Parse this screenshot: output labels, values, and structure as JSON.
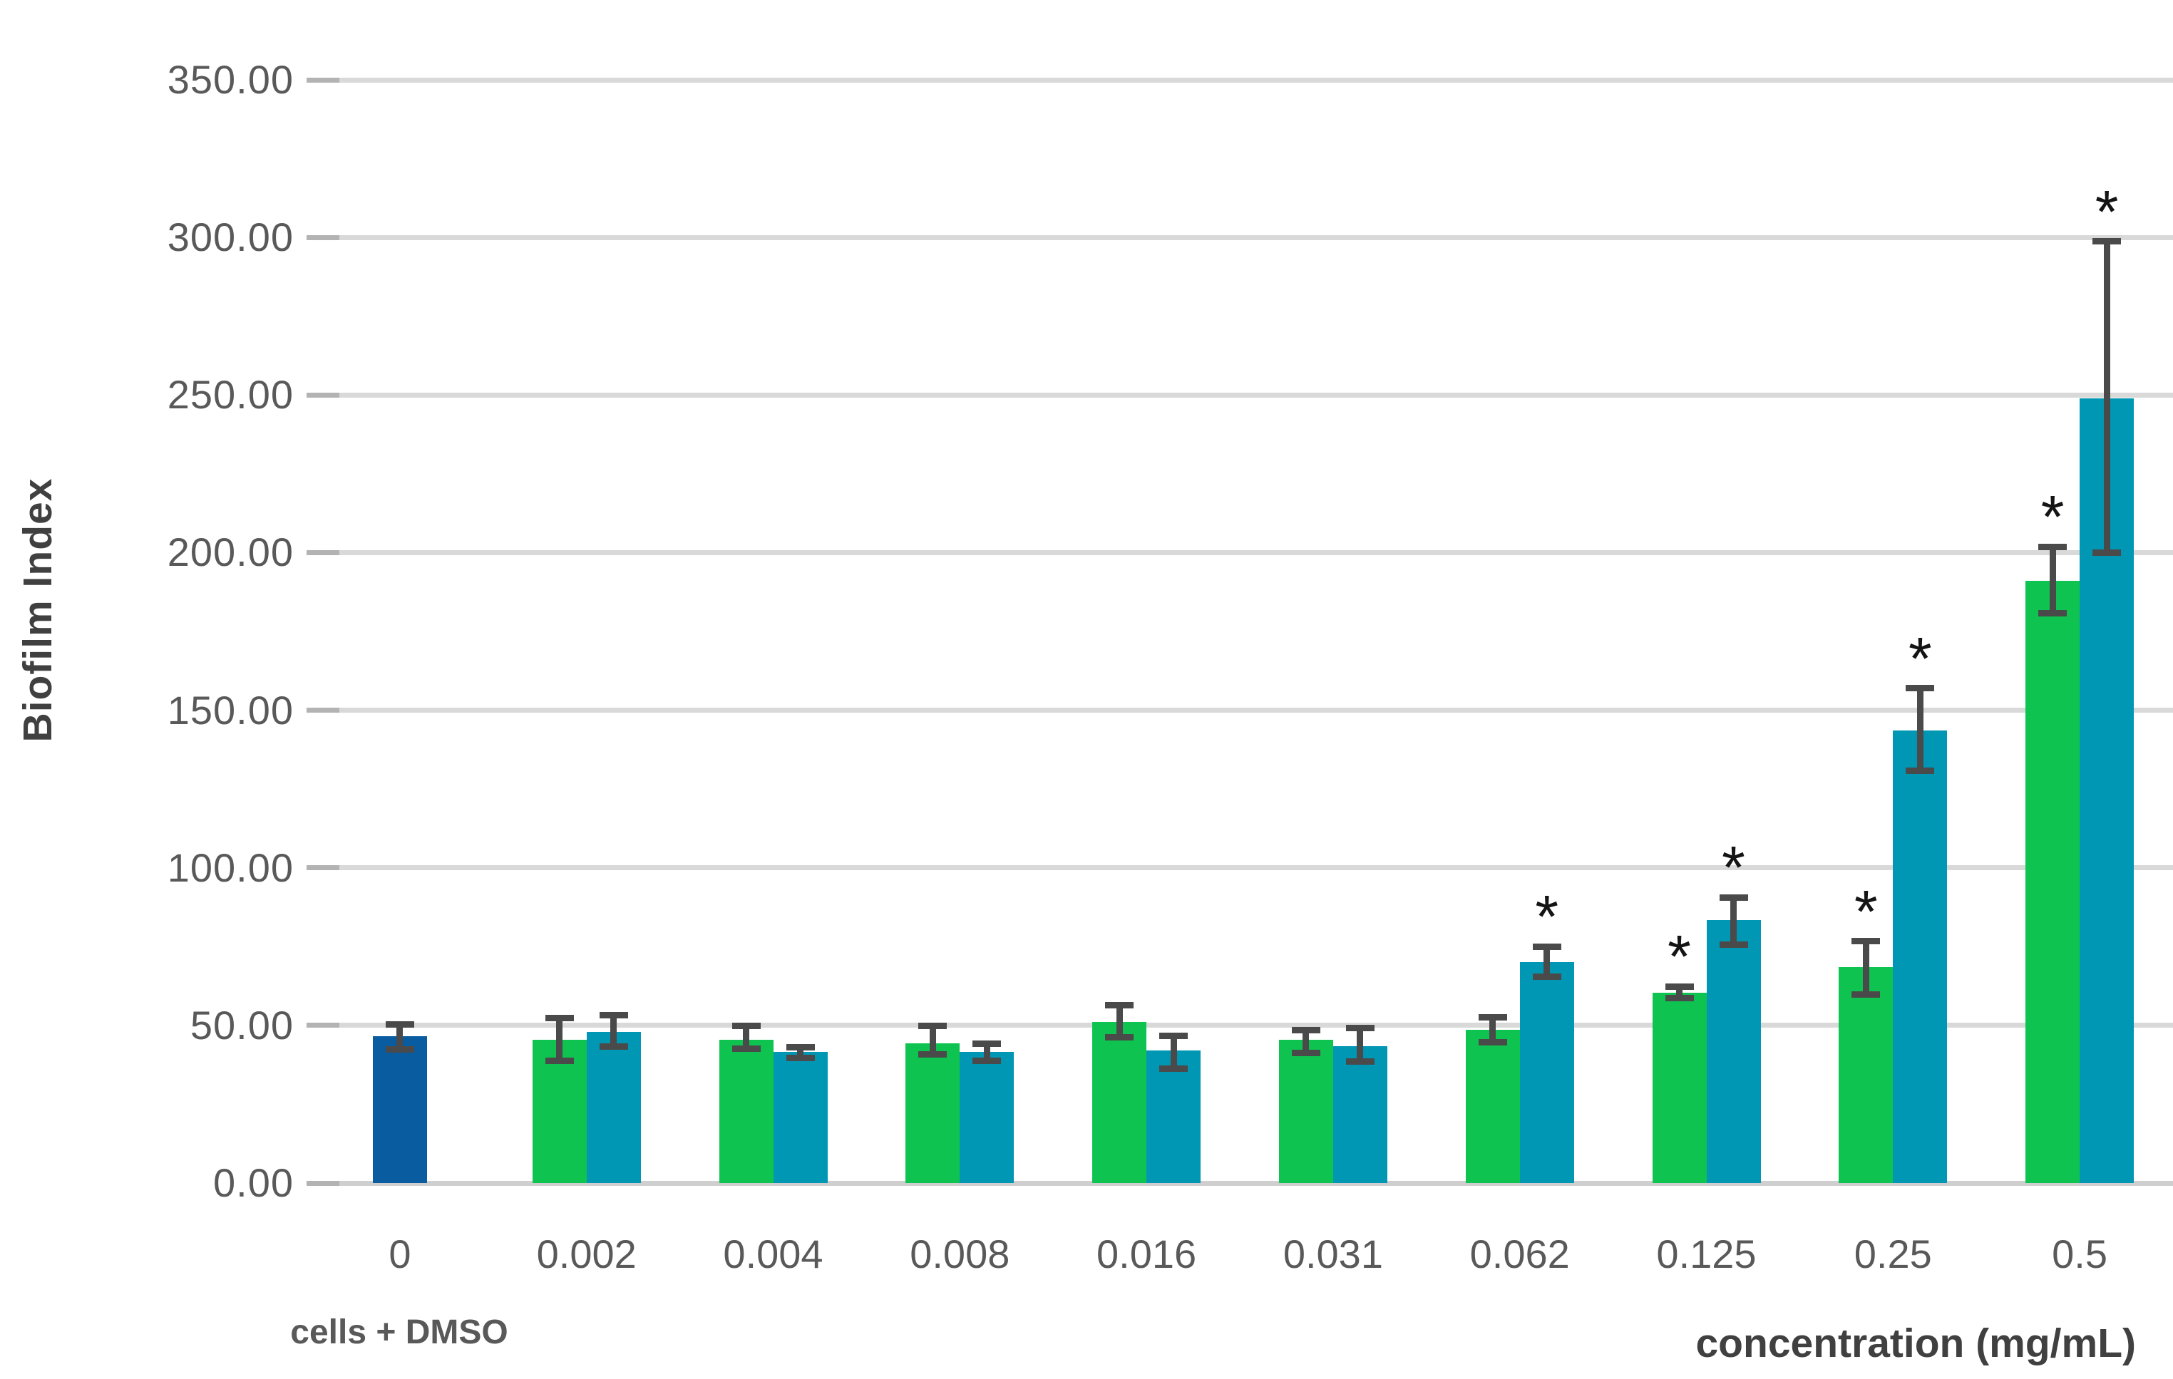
{
  "chart_data": {
    "type": "bar",
    "title": "",
    "ylabel": "Biofilm Index",
    "xlabel": "concentration (mg/mL)",
    "ylim": [
      0,
      350
    ],
    "ytick_step": 50,
    "ytick_labels": [
      "350.00",
      "300.00",
      "250.00",
      "200.00",
      "150.00",
      "100.00",
      "50.00",
      "0.00"
    ],
    "grid": true,
    "legend": "none",
    "significance_marker": "*",
    "categories": [
      "0",
      "0.002",
      "0.004",
      "0.008",
      "0.016",
      "0.031",
      "0.062",
      "0.125",
      "0.25",
      "0.5"
    ],
    "category_sublabels": {
      "0": "cells + DMSO"
    },
    "colors": {
      "control": "#0a5ca0",
      "series1": "#0fc350",
      "series2": "#0097b4",
      "error_bar": "#4a4a4a",
      "gridline": "#d9d9d9",
      "tick_text": "#595959",
      "axis_title_text": "#404040",
      "significance": "#141414"
    },
    "groups": [
      {
        "category": "0",
        "bars": [
          {
            "series": "control",
            "value": 46.5,
            "err_low": 42.5,
            "err_high": 50.2,
            "significant": false
          }
        ]
      },
      {
        "category": "0.002",
        "bars": [
          {
            "series": "series1",
            "value": 45.5,
            "err_low": 38.8,
            "err_high": 52.3,
            "significant": false
          },
          {
            "series": "series2",
            "value": 48.0,
            "err_low": 43.3,
            "err_high": 53.3,
            "significant": false
          }
        ]
      },
      {
        "category": "0.004",
        "bars": [
          {
            "series": "series1",
            "value": 45.4,
            "err_low": 42.6,
            "err_high": 49.8,
            "significant": false
          },
          {
            "series": "series2",
            "value": 41.5,
            "err_low": 39.7,
            "err_high": 43.0,
            "significant": false
          }
        ]
      },
      {
        "category": "0.008",
        "bars": [
          {
            "series": "series1",
            "value": 44.4,
            "err_low": 40.7,
            "err_high": 49.8,
            "significant": false
          },
          {
            "series": "series2",
            "value": 41.5,
            "err_low": 38.8,
            "err_high": 44.2,
            "significant": false
          }
        ]
      },
      {
        "category": "0.016",
        "bars": [
          {
            "series": "series1",
            "value": 51.0,
            "err_low": 46.3,
            "err_high": 56.4,
            "significant": false
          },
          {
            "series": "series2",
            "value": 42.0,
            "err_low": 36.2,
            "err_high": 46.8,
            "significant": false
          }
        ]
      },
      {
        "category": "0.031",
        "bars": [
          {
            "series": "series1",
            "value": 45.5,
            "err_low": 41.3,
            "err_high": 48.6,
            "significant": false
          },
          {
            "series": "series2",
            "value": 43.5,
            "err_low": 38.5,
            "err_high": 49.1,
            "significant": false
          }
        ]
      },
      {
        "category": "0.062",
        "bars": [
          {
            "series": "series1",
            "value": 48.5,
            "err_low": 44.7,
            "err_high": 52.6,
            "significant": false
          },
          {
            "series": "series2",
            "value": 70.0,
            "err_low": 65.4,
            "err_high": 75.0,
            "significant": true
          }
        ]
      },
      {
        "category": "0.125",
        "bars": [
          {
            "series": "series1",
            "value": 60.4,
            "err_low": 58.6,
            "err_high": 62.4,
            "significant": true
          },
          {
            "series": "series2",
            "value": 83.5,
            "err_low": 75.7,
            "err_high": 90.6,
            "significant": true
          }
        ]
      },
      {
        "category": "0.25",
        "bars": [
          {
            "series": "series1",
            "value": 68.5,
            "err_low": 59.9,
            "err_high": 76.7,
            "significant": true
          },
          {
            "series": "series2",
            "value": 143.5,
            "err_low": 130.8,
            "err_high": 157.0,
            "significant": true
          }
        ]
      },
      {
        "category": "0.5",
        "bars": [
          {
            "series": "series1",
            "value": 191.0,
            "err_low": 180.8,
            "err_high": 201.9,
            "significant": true
          },
          {
            "series": "series2",
            "value": 249.0,
            "err_low": 200.0,
            "err_high": 298.7,
            "significant": true
          }
        ]
      }
    ]
  }
}
